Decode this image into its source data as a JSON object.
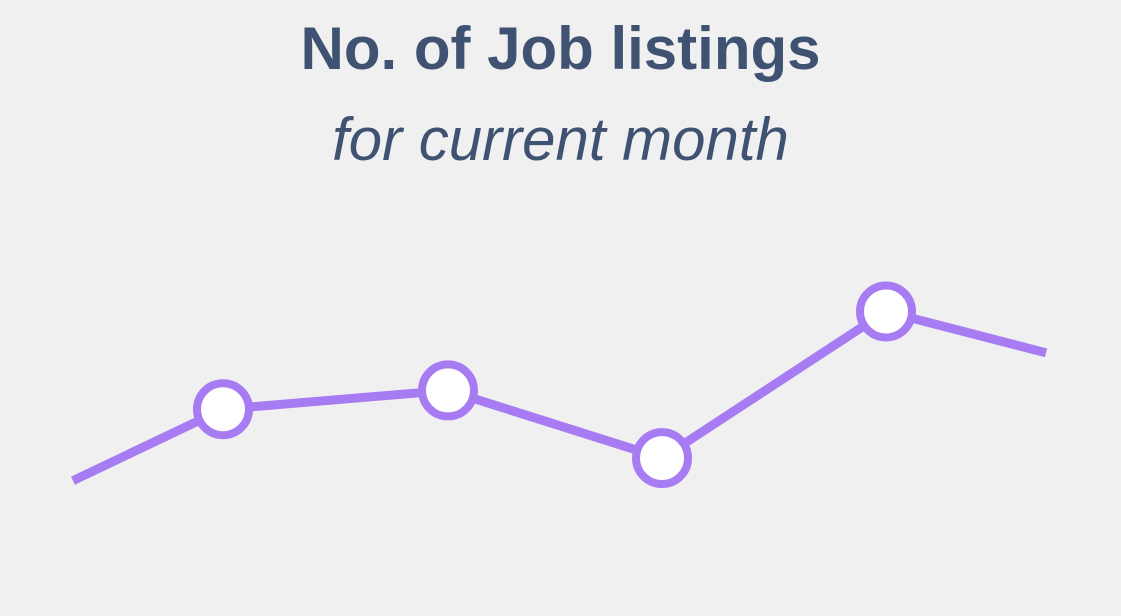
{
  "header": {
    "title": "No. of Job listings",
    "subtitle": "for current month"
  },
  "colors": {
    "background": "#f0f0f1",
    "text": "#3f5272",
    "line": "#a77bf2",
    "point_fill": "#ffffff"
  },
  "chart_data": {
    "type": "line",
    "title": "No. of Job listings",
    "subtitle": "for current month",
    "xlabel": "",
    "ylabel": "",
    "grid": false,
    "legend": "none",
    "ylim": [
      0,
      10
    ],
    "x": [
      0,
      1,
      2,
      3,
      4,
      5
    ],
    "values": [
      3.6,
      5.5,
      6.0,
      4.2,
      8.1,
      7.0
    ],
    "markers": [
      false,
      true,
      true,
      true,
      true,
      false
    ]
  }
}
